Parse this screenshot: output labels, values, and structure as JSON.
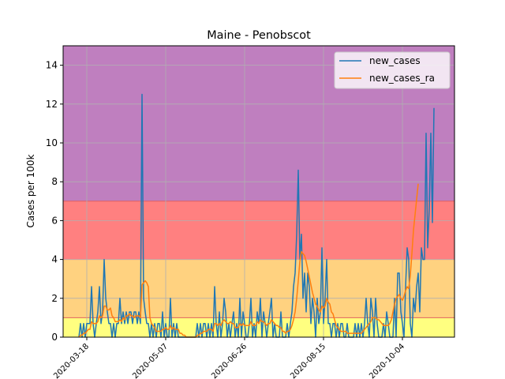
{
  "chart_data": {
    "type": "line",
    "title": "Maine - Penobscot",
    "ylabel": "Cases per 100k",
    "xlabel": "",
    "xlim": [
      "2020-03-03",
      "2020-11-06"
    ],
    "ylim": [
      0,
      15
    ],
    "yticks": [
      0,
      2,
      4,
      6,
      8,
      10,
      12,
      14
    ],
    "xticks": [
      "2020-03-18",
      "2020-05-07",
      "2020-06-26",
      "2020-08-15",
      "2020-10-04"
    ],
    "grid": true,
    "legend": "top-right",
    "risk_bands": [
      {
        "from": 0,
        "to": 1,
        "color": "#ffff80"
      },
      {
        "from": 1,
        "to": 4,
        "color": "#ffd280"
      },
      {
        "from": 4,
        "to": 7,
        "color": "#ff8080"
      },
      {
        "from": 7,
        "to": 15,
        "color": "#bf7fbf"
      }
    ],
    "x_start": "2020-03-13",
    "series": [
      {
        "name": "new_cases",
        "color": "#1f77b4",
        "values": [
          0,
          0.7,
          0,
          0.7,
          0,
          0.7,
          0.7,
          0.7,
          2.6,
          0.7,
          0,
          0.7,
          1.3,
          2.6,
          0.7,
          1.3,
          4,
          2,
          1.3,
          0.7,
          0.7,
          0,
          0.7,
          0,
          0.7,
          0.7,
          2,
          0.7,
          1.3,
          0.7,
          1.3,
          0.7,
          1.3,
          1.3,
          0.7,
          1.3,
          1.3,
          0.7,
          1.3,
          0.7,
          12.5,
          2,
          1.3,
          0.7,
          0.7,
          0,
          0.7,
          0,
          0.7,
          0,
          0.7,
          0.7,
          0,
          1.3,
          0,
          0.7,
          0,
          0,
          2,
          0,
          0.7,
          0,
          0.7,
          0,
          0,
          0,
          0,
          0,
          0,
          0,
          0,
          0,
          0,
          0,
          0,
          0.7,
          0,
          0.7,
          0,
          0.7,
          0.7,
          0,
          0.7,
          0,
          0.7,
          0,
          2.6,
          0.7,
          0,
          1.3,
          0,
          0.7,
          2,
          1.3,
          0,
          0.7,
          0,
          0.7,
          1.3,
          0,
          0.7,
          0,
          2,
          0,
          1.3,
          0.7,
          0,
          0,
          0.7,
          2,
          0,
          0.7,
          0,
          1.3,
          0.7,
          2,
          0,
          1.3,
          0.7,
          0,
          0.7,
          1.3,
          2,
          0,
          0.7,
          0,
          0,
          0,
          1.3,
          0,
          0,
          0,
          0.7,
          0,
          0.7,
          1.3,
          2.6,
          3.3,
          5.3,
          8.6,
          4,
          5.3,
          2,
          3.3,
          1.3,
          3.3,
          2.6,
          0.7,
          2,
          1.3,
          0,
          2,
          0.7,
          1.3,
          4.6,
          0.7,
          2,
          4,
          0.7,
          0.7,
          0,
          0.7,
          0.7,
          0,
          0.7,
          0,
          0.7,
          0.7,
          0,
          0,
          0.7,
          0,
          0,
          0,
          0,
          0.7,
          0,
          0.7,
          0,
          0.7,
          0,
          0.7,
          2,
          0.7,
          0,
          2,
          1.3,
          0,
          2,
          0.7,
          0,
          0,
          0,
          0.7,
          0,
          1.3,
          0.7,
          0,
          0,
          0,
          2,
          0,
          3.3,
          3.3,
          1.3,
          0.7,
          0,
          2.6,
          4.6,
          4,
          0.7,
          0,
          2,
          1.3,
          2.6,
          3.3,
          1.3,
          4.6,
          4,
          4,
          10.5,
          4.6,
          6.6,
          10.5,
          5.9,
          11.8
        ]
      },
      {
        "name": "new_cases_ra",
        "color": "#ff7f0e",
        "values": [
          0,
          0.1,
          0.1,
          0.2,
          0.2,
          0.3,
          0.4,
          0.4,
          0.8,
          0.7,
          0.7,
          0.7,
          0.8,
          1.1,
          1,
          1.1,
          1.6,
          1.6,
          1.4,
          1.4,
          1.5,
          1.1,
          1,
          0.8,
          0.8,
          0.8,
          0.9,
          0.8,
          1,
          0.9,
          1.1,
          1.1,
          1.2,
          1.1,
          1.1,
          1,
          1.1,
          1.1,
          1.1,
          1,
          2.7,
          2.8,
          2.9,
          2.8,
          2.6,
          1,
          0.7,
          0.6,
          0.5,
          0.3,
          0.3,
          0.3,
          0.3,
          0.4,
          0.4,
          0.5,
          0.4,
          0.4,
          0.6,
          0.4,
          0.5,
          0.4,
          0.4,
          0.4,
          0.2,
          0.2,
          0.1,
          0.1,
          0,
          0,
          0,
          0,
          0,
          0,
          0,
          0.1,
          0.1,
          0.2,
          0.2,
          0.3,
          0.3,
          0.3,
          0.4,
          0.4,
          0.4,
          0.3,
          0.7,
          0.7,
          0.6,
          0.7,
          0.6,
          0.8,
          0.9,
          0.8,
          0.7,
          0.7,
          0.8,
          0.7,
          0.7,
          0.5,
          0.5,
          0.5,
          0.7,
          0.6,
          0.7,
          0.6,
          0.6,
          0.6,
          0.6,
          0.8,
          0.6,
          0.6,
          0.6,
          0.8,
          0.7,
          0.9,
          0.8,
          0.8,
          0.7,
          0.6,
          0.7,
          0.7,
          0.9,
          0.8,
          0.7,
          0.6,
          0.6,
          0.5,
          0.5,
          0.3,
          0.3,
          0.2,
          0.3,
          0.3,
          0.4,
          0.6,
          0.9,
          1.3,
          2,
          2.9,
          3.9,
          4.4,
          4.3,
          4.2,
          3.9,
          3.5,
          3.1,
          2.7,
          2.3,
          2,
          1.7,
          1.6,
          1.4,
          1.3,
          1.6,
          1.5,
          1.6,
          2,
          1.8,
          1.7,
          1.3,
          1.2,
          0.9,
          0.6,
          0.5,
          0.4,
          0.3,
          0.3,
          0.3,
          0.3,
          0.2,
          0.2,
          0.2,
          0.2,
          0.2,
          0.2,
          0.2,
          0.2,
          0.2,
          0.2,
          0.3,
          0.4,
          0.5,
          0.6,
          0.7,
          0.8,
          1,
          1,
          1,
          0.9,
          0.9,
          0.8,
          0.7,
          0.6,
          0.6,
          0.6,
          0.6,
          0.7,
          0.9,
          1.3,
          1.7,
          2,
          2.1,
          2.2,
          2,
          1.9,
          2.1,
          2.4,
          2.6,
          2.5,
          3.2,
          4.3,
          5.5,
          6.3,
          7.1,
          7.9
        ]
      }
    ]
  }
}
